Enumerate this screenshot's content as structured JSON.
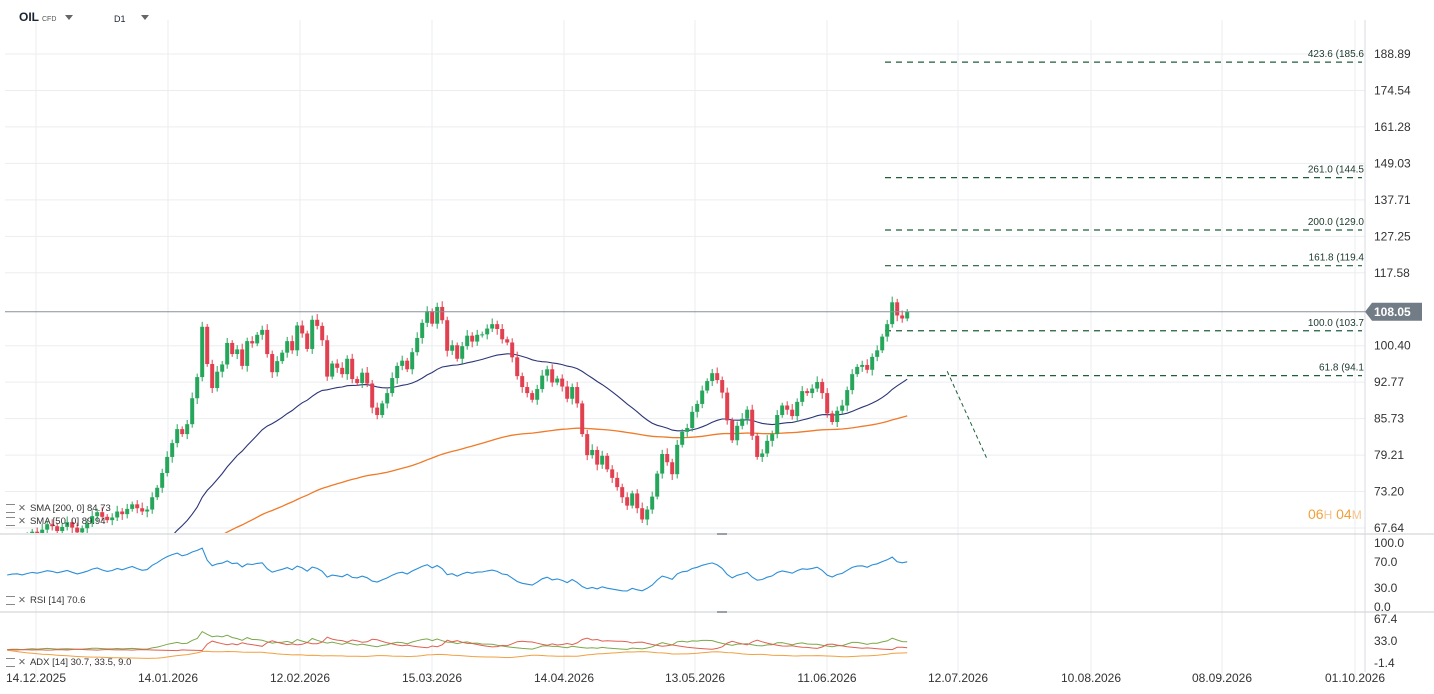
{
  "header": {
    "symbol": "OIL",
    "instrument_type": "CFD",
    "timeframe": "D1"
  },
  "colors": {
    "up": "#26a65b",
    "down": "#e04050",
    "sma200": "#f07a28",
    "sma50": "#2c3577",
    "rsi": "#2a8ed8",
    "adx": "#f0a040",
    "di_plus": "#7aa84a",
    "di_minus": "#e06050",
    "fib": "#1f5f3a",
    "grid": "#ebedf0",
    "price_label_bg": "#727c86"
  },
  "legend": {
    "sma200": "SMA [200, 0] 84.73",
    "sma50": "SMA [50, 0] 89.94",
    "rsi": "RSI [14] 70.6",
    "adx": "ADX [14] 30.7, 33.5, 9.0"
  },
  "timer": {
    "hours": "06",
    "h": "H",
    "minutes": "04",
    "m": "M"
  },
  "chart_data": {
    "type": "candlestick",
    "price_axis": {
      "scale": "log",
      "ticks": [
        "188.89",
        "174.54",
        "161.28",
        "149.03",
        "137.71",
        "127.25",
        "117.58",
        "100.40",
        "92.77",
        "85.73",
        "79.21",
        "73.20",
        "67.64"
      ],
      "current_price": "108.05"
    },
    "x_axis": {
      "ticks": [
        "14.12.2025",
        "14.01.2026",
        "12.02.2026",
        "15.03.2026",
        "14.04.2026",
        "13.05.2026",
        "11.06.2026",
        "12.07.2026",
        "10.08.2026",
        "08.09.2026",
        "01.10.2026"
      ]
    },
    "fibonacci": [
      {
        "label": "423.6 (185.6",
        "value": 185.6
      },
      {
        "label": "261.0 (144.5",
        "value": 144.5
      },
      {
        "label": "200.0 (129.0",
        "value": 129.0
      },
      {
        "label": "161.8 (119.4",
        "value": 119.4
      },
      {
        "label": "100.0 (103.7",
        "value": 103.7
      },
      {
        "label": "61.8 (94.1",
        "value": 94.1
      }
    ],
    "closes": [
      65.2,
      65.9,
      66.1,
      65.4,
      66.3,
      67.1,
      66.6,
      67.4,
      68.2,
      67.9,
      67.2,
      67.8,
      68.5,
      67.7,
      67.0,
      67.6,
      68.3,
      69.4,
      70.0,
      69.3,
      68.8,
      69.2,
      70.1,
      69.7,
      70.5,
      71.2,
      70.6,
      70.1,
      70.4,
      72.3,
      73.8,
      76.2,
      78.9,
      81.3,
      83.8,
      82.9,
      84.7,
      89.6,
      93.8,
      104.6,
      96.5,
      91.6,
      94.9,
      96.4,
      101.0,
      98.6,
      99.6,
      96.1,
      101.4,
      100.9,
      102.8,
      103.9,
      98.6,
      94.8,
      97.1,
      98.9,
      101.4,
      99.4,
      104.9,
      103.1,
      99.7,
      106.2,
      104.8,
      101.6,
      93.9,
      96.6,
      95.7,
      94.4,
      97.6,
      93.4,
      92.6,
      94.7,
      92.5,
      87.8,
      86.4,
      88.6,
      90.6,
      93.6,
      96.1,
      97.2,
      95.4,
      99.0,
      102.1,
      105.5,
      108.2,
      105.3,
      109.2,
      106.1,
      99.3,
      100.5,
      97.6,
      100.3,
      102.6,
      101.3,
      102.8,
      102.9,
      104.2,
      105.2,
      104.1,
      101.8,
      101.1,
      97.9,
      94.0,
      91.8,
      90.6,
      89.3,
      91.4,
      94.1,
      95.4,
      92.7,
      93.5,
      91.9,
      89.5,
      91.8,
      88.6,
      82.9,
      79.2,
      80.1,
      77.6,
      79.1,
      76.8,
      75.4,
      73.9,
      72.3,
      71.0,
      72.9,
      70.6,
      68.9,
      70.4,
      72.4,
      76.1,
      79.4,
      78.0,
      76.0,
      81.0,
      83.3,
      84.0,
      87.0,
      88.5,
      91.1,
      93.0,
      94.6,
      93.2,
      90.7,
      85.4,
      81.8,
      84.4,
      85.7,
      87.4,
      82.6,
      78.9,
      79.5,
      81.7,
      82.9,
      86.4,
      88.2,
      87.4,
      86.2,
      88.9,
      91.0,
      90.6,
      91.5,
      92.8,
      90.6,
      86.7,
      85.1,
      87.2,
      88.2,
      91.2,
      94.4,
      95.9,
      96.3,
      95.3,
      98.0,
      99.4,
      102.4,
      105.2,
      110.3,
      107.2,
      106.5,
      108.05
    ],
    "sma50_start": 50.0,
    "sma200_start": 60.5
  }
}
